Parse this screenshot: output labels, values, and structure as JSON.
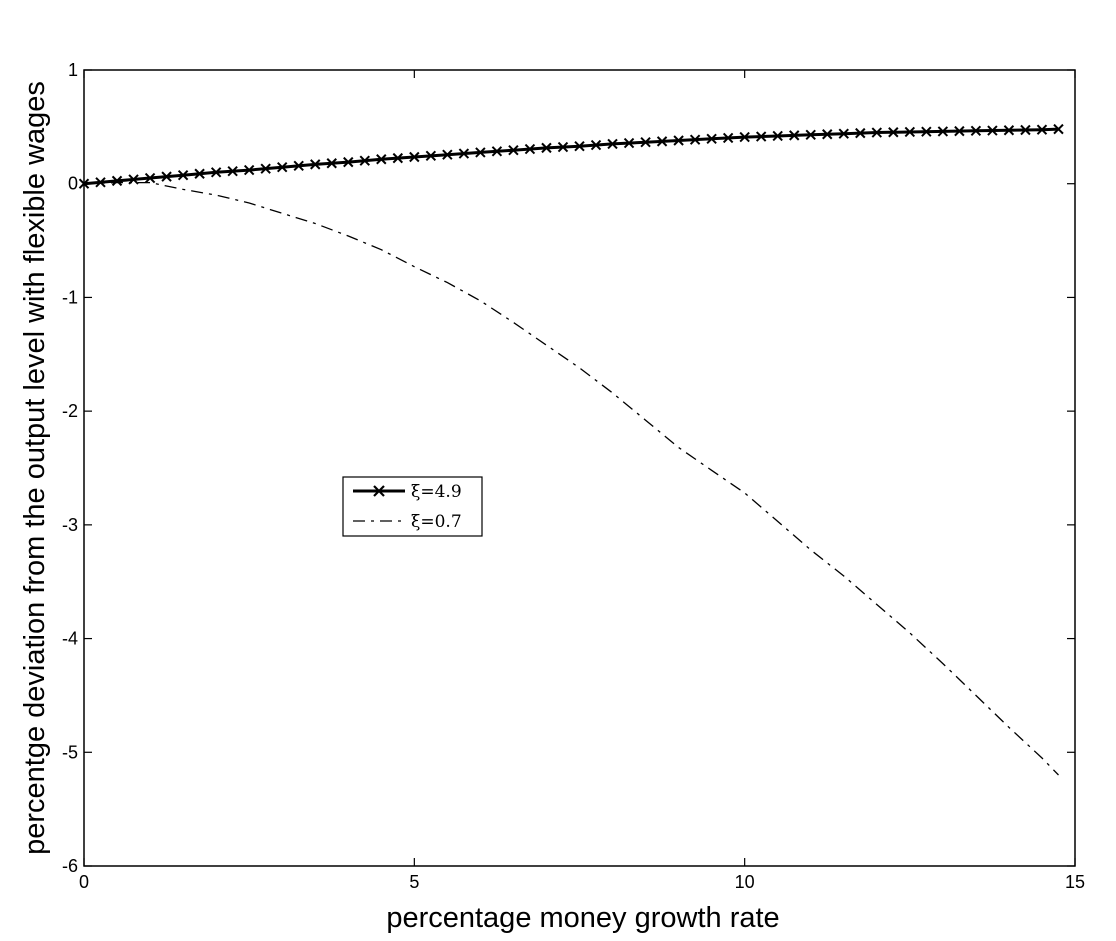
{
  "chart_data": {
    "type": "line",
    "title": "",
    "xlabel": "percentage money growth rate",
    "ylabel": "percentge deviation from the output level with flexible wages",
    "xlim": [
      0,
      15
    ],
    "ylim": [
      -6,
      1
    ],
    "x_ticks": [
      "0",
      "5",
      "10",
      "15"
    ],
    "y_ticks": [
      "1",
      "0",
      "-1",
      "-2",
      "-3",
      "-4",
      "-5",
      "-6"
    ],
    "grid": false,
    "legend_position": "center-left",
    "series": [
      {
        "name": "ξ=4.9",
        "style": "solid-x-marker",
        "color": "#000000",
        "x": [
          0,
          0.5,
          1,
          1.5,
          2,
          2.5,
          3,
          3.5,
          4,
          4.5,
          5,
          5.5,
          6,
          6.5,
          7,
          7.5,
          8,
          8.5,
          9,
          9.5,
          10,
          10.5,
          11,
          11.5,
          12,
          12.5,
          13,
          13.5,
          14,
          14.5,
          14.75
        ],
        "y": [
          0,
          0.025,
          0.05,
          0.075,
          0.1,
          0.12,
          0.145,
          0.17,
          0.19,
          0.215,
          0.235,
          0.255,
          0.275,
          0.295,
          0.315,
          0.33,
          0.35,
          0.365,
          0.38,
          0.395,
          0.41,
          0.42,
          0.43,
          0.44,
          0.45,
          0.455,
          0.46,
          0.465,
          0.47,
          0.475,
          0.48
        ]
      },
      {
        "name": "ξ=0.7",
        "style": "dash-dot",
        "color": "#000000",
        "x": [
          0,
          0.5,
          1,
          1.5,
          2,
          2.5,
          3,
          3.5,
          4,
          4.5,
          5,
          5.5,
          6,
          6.5,
          7,
          7.5,
          8,
          8.5,
          9,
          9.5,
          10,
          10.5,
          11,
          11.5,
          12,
          12.5,
          13,
          13.5,
          14,
          14.5,
          14.75
        ],
        "y": [
          0,
          0.01,
          0.01,
          -0.05,
          -0.1,
          -0.17,
          -0.26,
          -0.35,
          -0.46,
          -0.58,
          -0.73,
          -0.87,
          -1.03,
          -1.22,
          -1.42,
          -1.62,
          -1.84,
          -2.08,
          -2.32,
          -2.52,
          -2.72,
          -2.97,
          -3.22,
          -3.45,
          -3.7,
          -3.95,
          -4.22,
          -4.5,
          -4.78,
          -5.05,
          -5.2
        ]
      }
    ]
  }
}
